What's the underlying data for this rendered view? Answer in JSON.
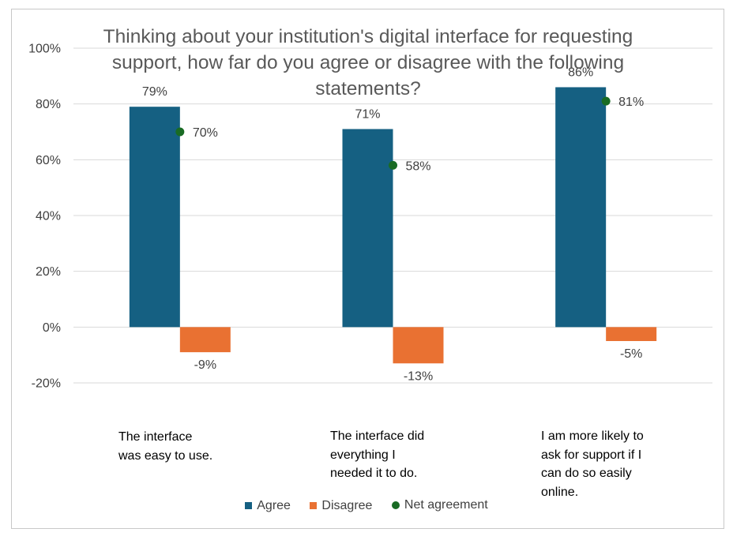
{
  "chart_data": {
    "type": "bar",
    "title": "Thinking about your institution's digital interface for requesting support, how far do you agree or disagree with the following statements?",
    "categories": [
      "The interface was easy to use.",
      "The interface did everything I needed it to do.",
      "I am more likely to ask for support if I can do so easily online."
    ],
    "category_label_lines": [
      [
        "The interface",
        "was easy to use."
      ],
      [
        "The interface did",
        "everything I",
        "needed it to do."
      ],
      [
        "I am more likely to",
        "ask for support if I",
        "can do so easily",
        "online."
      ]
    ],
    "series": [
      {
        "name": "Agree",
        "kind": "bar",
        "color": "#156082",
        "values": [
          79,
          71,
          86
        ],
        "labels": [
          "79%",
          "71%",
          "86%"
        ]
      },
      {
        "name": "Disagree",
        "kind": "bar",
        "color": "#E97132",
        "values": [
          -9,
          -13,
          -5
        ],
        "labels": [
          "-9%",
          "-13%",
          "-5%"
        ]
      },
      {
        "name": "Net agreement",
        "kind": "marker",
        "color": "#196B24",
        "values": [
          70,
          58,
          81
        ],
        "labels": [
          "70%",
          "58%",
          "81%"
        ]
      }
    ],
    "ylim": [
      -20,
      100
    ],
    "yticks": [
      -20,
      0,
      20,
      40,
      60,
      80,
      100
    ],
    "ytick_labels": [
      "-20%",
      "0%",
      "20%",
      "40%",
      "60%",
      "80%",
      "100%"
    ],
    "grid": true,
    "legend_position": "bottom"
  }
}
